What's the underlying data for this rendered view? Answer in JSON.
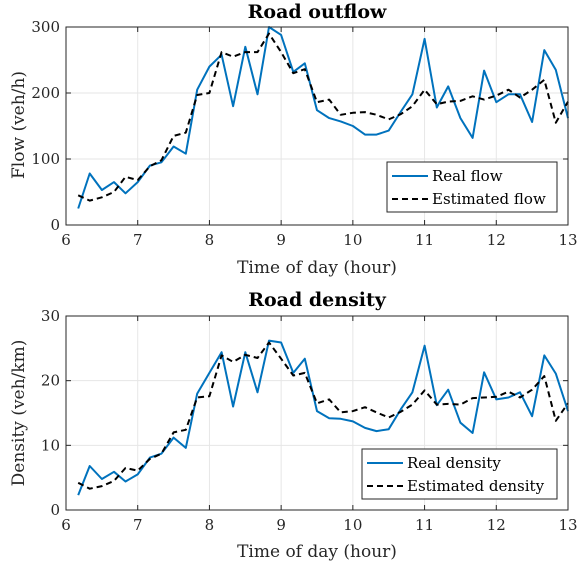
{
  "chart_data": [
    {
      "type": "line",
      "title": "Road outflow",
      "xlabel": "Time of day (hour)",
      "ylabel": "Flow (veh/h)",
      "xlim": [
        6,
        13
      ],
      "ylim": [
        0,
        300
      ],
      "xticks": [
        6,
        7,
        8,
        9,
        10,
        11,
        12,
        13
      ],
      "yticks": [
        0,
        100,
        200,
        300
      ],
      "grid": true,
      "legend": "bottom-right",
      "series": [
        {
          "name": "Real flow",
          "color": "#0072BD",
          "dash": "solid",
          "x": [
            6.17,
            6.33,
            6.5,
            6.67,
            6.83,
            7.0,
            7.17,
            7.33,
            7.5,
            7.67,
            7.83,
            8.0,
            8.17,
            8.33,
            8.5,
            8.67,
            8.83,
            9.0,
            9.17,
            9.33,
            9.5,
            9.67,
            9.83,
            10.0,
            10.17,
            10.33,
            10.5,
            10.67,
            10.83,
            11.0,
            11.17,
            11.33,
            11.5,
            11.67,
            11.83,
            12.0,
            12.17,
            12.33,
            12.5,
            12.67,
            12.83,
            13.0
          ],
          "y": [
            25,
            78,
            53,
            65,
            48,
            65,
            90,
            95,
            119,
            108,
            205,
            240,
            258,
            180,
            270,
            198,
            300,
            288,
            232,
            245,
            174,
            162,
            157,
            150,
            137,
            137,
            143,
            172,
            198,
            282,
            178,
            210,
            162,
            132,
            234,
            186,
            198,
            198,
            156,
            265,
            235,
            162
          ]
        },
        {
          "name": "Estimated flow",
          "color": "#000000",
          "dash": "dashed",
          "x": [
            6.17,
            6.33,
            6.5,
            6.67,
            6.83,
            7.0,
            7.17,
            7.33,
            7.5,
            7.67,
            7.83,
            8.0,
            8.17,
            8.33,
            8.5,
            8.67,
            8.83,
            9.0,
            9.17,
            9.33,
            9.5,
            9.67,
            9.83,
            10.0,
            10.17,
            10.33,
            10.5,
            10.67,
            10.83,
            11.0,
            11.17,
            11.33,
            11.5,
            11.67,
            11.83,
            12.0,
            12.17,
            12.33,
            12.5,
            12.67,
            12.83,
            13.0
          ],
          "y": [
            45,
            37,
            42,
            50,
            73,
            68,
            89,
            98,
            135,
            140,
            197,
            200,
            262,
            255,
            262,
            262,
            290,
            262,
            230,
            236,
            186,
            190,
            167,
            170,
            171,
            167,
            160,
            168,
            180,
            205,
            183,
            187,
            188,
            195,
            190,
            196,
            205,
            193,
            205,
            220,
            155,
            187
          ]
        }
      ]
    },
    {
      "type": "line",
      "title": "Road density",
      "xlabel": "Time of day (hour)",
      "ylabel": "Density (veh/km)",
      "xlim": [
        6,
        13
      ],
      "ylim": [
        0,
        30
      ],
      "xticks": [
        6,
        7,
        8,
        9,
        10,
        11,
        12,
        13
      ],
      "yticks": [
        0,
        10,
        20,
        30
      ],
      "grid": true,
      "legend": "bottom-right",
      "series": [
        {
          "name": "Real density",
          "color": "#0072BD",
          "dash": "solid",
          "x": [
            6.17,
            6.33,
            6.5,
            6.67,
            6.83,
            7.0,
            7.17,
            7.33,
            7.5,
            7.67,
            7.83,
            8.0,
            8.17,
            8.33,
            8.5,
            8.67,
            8.83,
            9.0,
            9.17,
            9.33,
            9.5,
            9.67,
            9.83,
            10.0,
            10.17,
            10.33,
            10.5,
            10.67,
            10.83,
            11.0,
            11.17,
            11.33,
            11.5,
            11.67,
            11.83,
            12.0,
            12.17,
            12.33,
            12.5,
            12.67,
            12.83,
            13.0
          ],
          "y": [
            2.3,
            6.8,
            4.8,
            5.9,
            4.4,
            5.5,
            8.1,
            8.7,
            11.2,
            9.6,
            18.0,
            21.2,
            24.4,
            16.0,
            24.4,
            18.2,
            26.2,
            25.9,
            21.2,
            23.4,
            15.3,
            14.2,
            14.1,
            13.7,
            12.7,
            12.2,
            12.5,
            15.6,
            18.2,
            25.4,
            16.2,
            18.6,
            13.5,
            11.9,
            21.3,
            17.1,
            17.4,
            18.2,
            14.5,
            23.9,
            21.1,
            15.3
          ]
        },
        {
          "name": "Estimated density",
          "color": "#000000",
          "dash": "dashed",
          "x": [
            6.17,
            6.33,
            6.5,
            6.67,
            6.83,
            7.0,
            7.17,
            7.33,
            7.5,
            7.67,
            7.83,
            8.0,
            8.17,
            8.33,
            8.5,
            8.67,
            8.83,
            9.0,
            9.17,
            9.33,
            9.5,
            9.67,
            9.83,
            10.0,
            10.17,
            10.33,
            10.5,
            10.67,
            10.83,
            11.0,
            11.17,
            11.33,
            11.5,
            11.67,
            11.83,
            12.0,
            12.17,
            12.33,
            12.5,
            12.67,
            12.83,
            13.0
          ],
          "y": [
            4.2,
            3.3,
            3.7,
            4.5,
            6.5,
            6.1,
            7.9,
            8.7,
            12.0,
            12.4,
            17.4,
            17.6,
            23.9,
            22.9,
            24.0,
            23.5,
            25.9,
            23.4,
            20.8,
            21.2,
            16.5,
            17.1,
            15.1,
            15.3,
            15.9,
            15.1,
            14.3,
            15.2,
            16.3,
            18.5,
            16.3,
            16.4,
            16.3,
            17.3,
            17.4,
            17.5,
            18.3,
            17.4,
            18.6,
            20.7,
            13.8,
            16.5
          ]
        }
      ]
    }
  ]
}
